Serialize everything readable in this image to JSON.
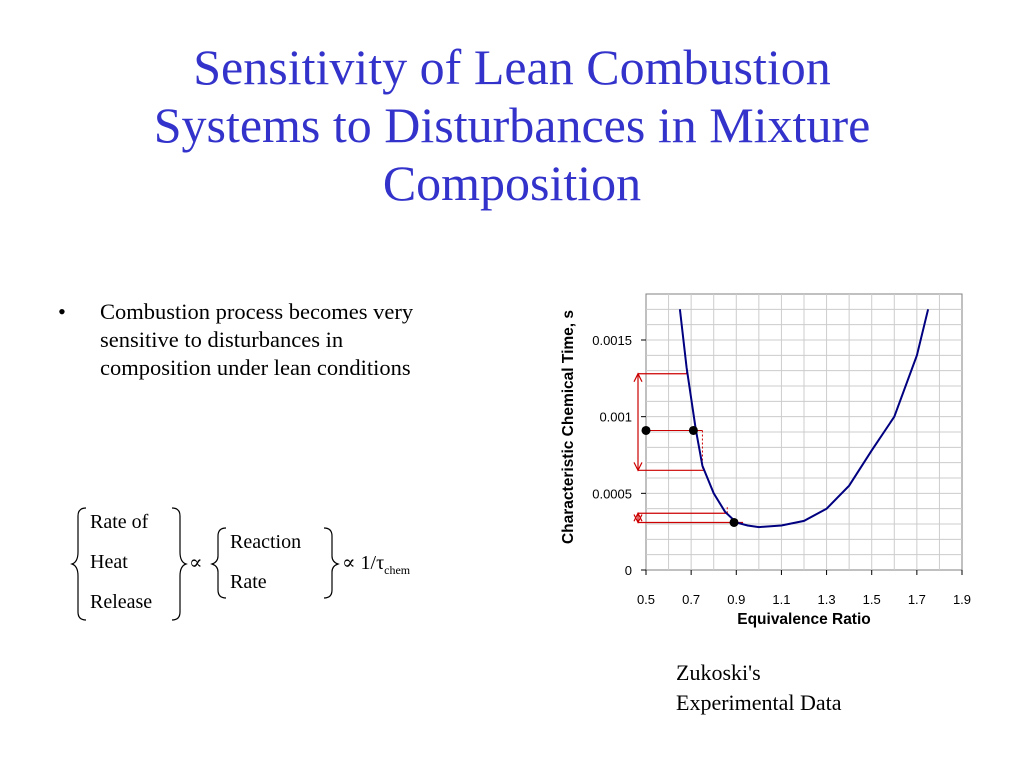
{
  "title": {
    "lines": [
      "Sensitivity of Lean Combustion",
      "Systems to Disturbances in Mixture",
      "Composition"
    ]
  },
  "bullets": [
    "Combustion process becomes very sensitive to disturbances in composition under lean conditions"
  ],
  "formula": {
    "group1": [
      "Rate of",
      "Heat",
      "Release"
    ],
    "proportional_symbol": "∝",
    "group2": [
      "Reaction",
      "Rate"
    ],
    "inverse": "∝ 1/τ",
    "subscript": "chem"
  },
  "citation": [
    "Zukoski's",
    "Experimental Data"
  ],
  "chart_data": {
    "type": "line",
    "title": "",
    "xlabel": "Equivalence Ratio",
    "ylabel": "Characteristic Chemical Time, s",
    "xlim": [
      0.5,
      1.9
    ],
    "ylim": [
      0,
      0.0018
    ],
    "x_ticks": [
      "0.5",
      "0.7",
      "0.9",
      "1.1",
      "1.3",
      "1.5",
      "1.7",
      "1.9"
    ],
    "y_ticks": [
      "0",
      "0.0005",
      "0.001",
      "0.0015"
    ],
    "grid": true,
    "line_color": "#000080",
    "series": [
      {
        "x": [
          0.65,
          0.68,
          0.72,
          0.75,
          0.8,
          0.85,
          0.9,
          0.95,
          1.0,
          1.1,
          1.2,
          1.3,
          1.4,
          1.5,
          1.6,
          1.7,
          1.75
        ],
        "values": [
          0.0017,
          0.00132,
          0.00092,
          0.00068,
          0.0005,
          0.00038,
          0.00031,
          0.00029,
          0.00028,
          0.00029,
          0.00032,
          0.0004,
          0.00055,
          0.00078,
          0.001,
          0.0014,
          0.0017
        ]
      }
    ],
    "markers": [
      {
        "x": 0.5,
        "y": 0.00091
      },
      {
        "x": 0.71,
        "y": 0.00091
      },
      {
        "x": 0.89,
        "y": 0.00031
      }
    ],
    "annotation_color": "#cc0000",
    "annotations": {
      "disturbance_brackets": [
        {
          "x": 0.5,
          "y_low": 0.00065,
          "y_high": 0.00128,
          "x_at_low": 0.76,
          "x_at_high": 0.68
        },
        {
          "x": 0.5,
          "y_low": 0.00031,
          "y_high": 0.00037,
          "x_at_low": 0.93,
          "x_at_high": 0.86
        }
      ],
      "reference_lines": [
        {
          "y": 0.00091,
          "x_from": 0.5,
          "x_to": 0.75,
          "x_drop": 0.75,
          "y_drop_to": 0.00065
        }
      ]
    }
  }
}
